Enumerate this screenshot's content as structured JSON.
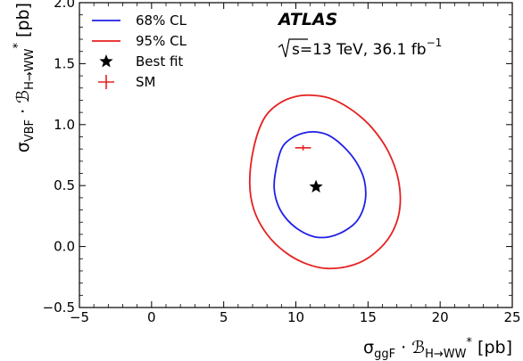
{
  "chart_data": {
    "type": "contour",
    "title": "ATLAS",
    "energy_prefix": "s",
    "energy_value": "=13 TeV, 36.1 fb",
    "energy_exponent": "−1",
    "xlabel": {
      "main": "σ",
      "sub": "ggF",
      "dot": " · ",
      "script": "ℬ",
      "sub2": "H→WW",
      "sup": "*",
      "unit": " [pb]"
    },
    "ylabel": {
      "main": "σ",
      "sub": "VBF",
      "dot": " · ",
      "script": "ℬ",
      "sub2": "H→WW",
      "sup": "*",
      "unit": " [pb]"
    },
    "xlim": [
      -5,
      25
    ],
    "ylim": [
      -0.5,
      2.0
    ],
    "x_ticks": [
      {
        "v": -5,
        "label": "−5"
      },
      {
        "v": 0,
        "label": "0"
      },
      {
        "v": 5,
        "label": "5"
      },
      {
        "v": 10,
        "label": "10"
      },
      {
        "v": 15,
        "label": "15"
      },
      {
        "v": 20,
        "label": "20"
      },
      {
        "v": 25,
        "label": "25"
      }
    ],
    "y_ticks": [
      {
        "v": -0.5,
        "label": "−0.5"
      },
      {
        "v": 0.0,
        "label": "0.0"
      },
      {
        "v": 0.5,
        "label": "0.5"
      },
      {
        "v": 1.0,
        "label": "1.0"
      },
      {
        "v": 1.5,
        "label": "1.5"
      },
      {
        "v": 2.0,
        "label": "2.0"
      }
    ],
    "contours": [
      {
        "name": "68% CL",
        "color": "#1f1fe6",
        "points": [
          [
            9.0,
            0.8
          ],
          [
            9.6,
            0.88
          ],
          [
            10.5,
            0.93
          ],
          [
            11.4,
            0.94
          ],
          [
            12.3,
            0.91
          ],
          [
            13.3,
            0.82
          ],
          [
            14.2,
            0.69
          ],
          [
            14.75,
            0.54
          ],
          [
            14.8,
            0.37
          ],
          [
            14.3,
            0.22
          ],
          [
            13.4,
            0.13
          ],
          [
            12.3,
            0.08
          ],
          [
            11.3,
            0.08
          ],
          [
            10.3,
            0.13
          ],
          [
            9.4,
            0.22
          ],
          [
            8.8,
            0.33
          ],
          [
            8.5,
            0.47
          ],
          [
            8.6,
            0.62
          ]
        ]
      },
      {
        "name": "95% CL",
        "color": "#e62020",
        "points": [
          [
            7.8,
            1.05
          ],
          [
            8.8,
            1.17
          ],
          [
            10.0,
            1.23
          ],
          [
            11.2,
            1.24
          ],
          [
            12.5,
            1.21
          ],
          [
            14.0,
            1.11
          ],
          [
            15.3,
            0.97
          ],
          [
            16.4,
            0.78
          ],
          [
            17.1,
            0.55
          ],
          [
            17.2,
            0.31
          ],
          [
            16.6,
            0.1
          ],
          [
            15.4,
            -0.06
          ],
          [
            14.0,
            -0.15
          ],
          [
            12.2,
            -0.18
          ],
          [
            10.7,
            -0.14
          ],
          [
            9.3,
            -0.05
          ],
          [
            8.0,
            0.1
          ],
          [
            7.1,
            0.3
          ],
          [
            6.8,
            0.53
          ],
          [
            7.1,
            0.82
          ]
        ]
      }
    ],
    "best_fit": {
      "name": "Best fit",
      "x": 11.4,
      "y": 0.49
    },
    "sm": {
      "name": "SM",
      "x": 10.5,
      "y": 0.81,
      "xerr": 0.55,
      "color": "#e62020"
    },
    "legend": {
      "placement": "top-left",
      "entries": [
        {
          "label": "68% CL",
          "kind": "line",
          "color": "#1f1fe6"
        },
        {
          "label": "95% CL",
          "kind": "line",
          "color": "#e62020"
        },
        {
          "label": "Best fit",
          "kind": "star",
          "color": "#000000"
        },
        {
          "label": "SM",
          "kind": "cross",
          "color": "#e62020"
        }
      ]
    },
    "grid": false
  }
}
